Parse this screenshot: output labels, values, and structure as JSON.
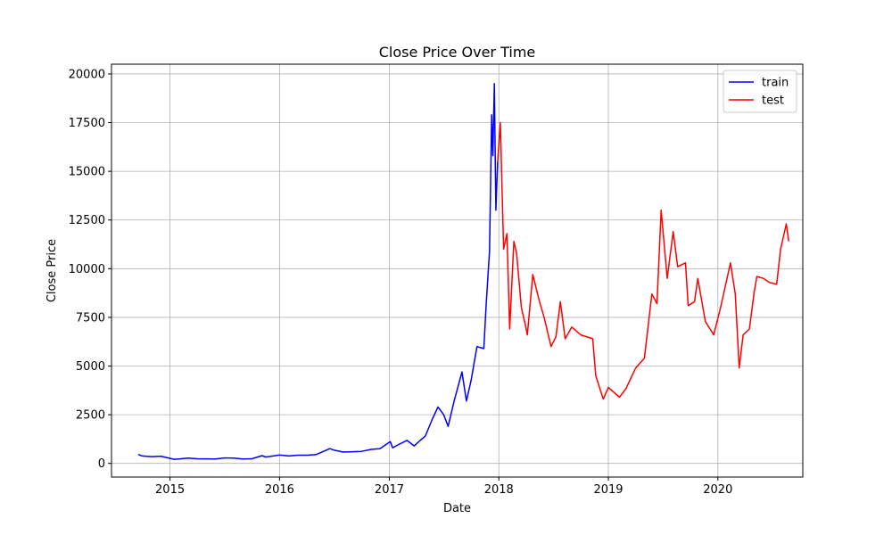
{
  "chart_data": {
    "type": "line",
    "title": "Close Price Over Time",
    "xlabel": "Date",
    "ylabel": "Close Price",
    "xlim": [
      "2014-06-20",
      "2020-10-10"
    ],
    "ylim": [
      -700,
      20500
    ],
    "x_ticks": [
      "2015-01-01",
      "2016-01-01",
      "2017-01-01",
      "2018-01-01",
      "2019-01-01",
      "2020-01-01"
    ],
    "x_tick_labels": [
      "2015",
      "2016",
      "2017",
      "2018",
      "2019",
      "2020"
    ],
    "y_ticks": [
      0,
      2500,
      5000,
      7500,
      10000,
      12500,
      15000,
      17500,
      20000
    ],
    "y_tick_labels": [
      "0",
      "2500",
      "5000",
      "7500",
      "10000",
      "12500",
      "15000",
      "17500",
      "20000"
    ],
    "grid": true,
    "legend_position": "top-right",
    "series": [
      {
        "name": "train",
        "color": "#0000ff",
        "points": [
          [
            "2014-09-17",
            460
          ],
          [
            "2014-10-01",
            380
          ],
          [
            "2014-11-01",
            350
          ],
          [
            "2014-12-01",
            370
          ],
          [
            "2015-01-15",
            210
          ],
          [
            "2015-02-01",
            230
          ],
          [
            "2015-03-01",
            270
          ],
          [
            "2015-04-01",
            240
          ],
          [
            "2015-05-01",
            235
          ],
          [
            "2015-06-01",
            225
          ],
          [
            "2015-07-01",
            280
          ],
          [
            "2015-08-01",
            270
          ],
          [
            "2015-09-01",
            230
          ],
          [
            "2015-10-01",
            240
          ],
          [
            "2015-11-04",
            400
          ],
          [
            "2015-11-15",
            330
          ],
          [
            "2015-12-01",
            360
          ],
          [
            "2016-01-01",
            430
          ],
          [
            "2016-02-01",
            380
          ],
          [
            "2016-03-01",
            420
          ],
          [
            "2016-04-01",
            420
          ],
          [
            "2016-05-01",
            450
          ],
          [
            "2016-06-17",
            760
          ],
          [
            "2016-07-01",
            680
          ],
          [
            "2016-08-01",
            580
          ],
          [
            "2016-09-01",
            600
          ],
          [
            "2016-10-01",
            620
          ],
          [
            "2016-11-01",
            720
          ],
          [
            "2016-12-01",
            760
          ],
          [
            "2017-01-04",
            1120
          ],
          [
            "2017-01-12",
            800
          ],
          [
            "2017-02-01",
            970
          ],
          [
            "2017-03-01",
            1180
          ],
          [
            "2017-03-25",
            900
          ],
          [
            "2017-04-15",
            1200
          ],
          [
            "2017-05-01",
            1400
          ],
          [
            "2017-05-25",
            2300
          ],
          [
            "2017-06-12",
            2900
          ],
          [
            "2017-07-01",
            2500
          ],
          [
            "2017-07-16",
            1900
          ],
          [
            "2017-08-05",
            3200
          ],
          [
            "2017-08-31",
            4700
          ],
          [
            "2017-09-15",
            3200
          ],
          [
            "2017-10-01",
            4300
          ],
          [
            "2017-10-20",
            6000
          ],
          [
            "2017-11-12",
            5900
          ],
          [
            "2017-11-20",
            8200
          ],
          [
            "2017-12-01",
            10900
          ],
          [
            "2017-12-08",
            17900
          ],
          [
            "2017-12-12",
            15800
          ],
          [
            "2017-12-17",
            19500
          ],
          [
            "2017-12-22",
            13000
          ],
          [
            "2017-12-28",
            15500
          ]
        ]
      },
      {
        "name": "test",
        "color": "#ff0000",
        "points": [
          [
            "2017-12-28",
            15500
          ],
          [
            "2018-01-06",
            17500
          ],
          [
            "2018-01-17",
            11000
          ],
          [
            "2018-01-28",
            11800
          ],
          [
            "2018-02-06",
            6900
          ],
          [
            "2018-02-20",
            11400
          ],
          [
            "2018-03-01",
            10800
          ],
          [
            "2018-03-17",
            8000
          ],
          [
            "2018-04-01",
            7000
          ],
          [
            "2018-04-06",
            6600
          ],
          [
            "2018-04-24",
            9700
          ],
          [
            "2018-05-15",
            8400
          ],
          [
            "2018-06-01",
            7500
          ],
          [
            "2018-06-24",
            6000
          ],
          [
            "2018-07-10",
            6500
          ],
          [
            "2018-07-25",
            8300
          ],
          [
            "2018-08-10",
            6400
          ],
          [
            "2018-09-01",
            7000
          ],
          [
            "2018-10-01",
            6600
          ],
          [
            "2018-11-10",
            6400
          ],
          [
            "2018-11-20",
            4500
          ],
          [
            "2018-12-15",
            3300
          ],
          [
            "2019-01-01",
            3900
          ],
          [
            "2019-02-07",
            3400
          ],
          [
            "2019-03-01",
            3850
          ],
          [
            "2019-04-02",
            4900
          ],
          [
            "2019-05-01",
            5400
          ],
          [
            "2019-05-26",
            8700
          ],
          [
            "2019-06-12",
            8200
          ],
          [
            "2019-06-26",
            13000
          ],
          [
            "2019-07-16",
            9500
          ],
          [
            "2019-08-05",
            11900
          ],
          [
            "2019-08-20",
            10100
          ],
          [
            "2019-09-15",
            10300
          ],
          [
            "2019-09-24",
            8100
          ],
          [
            "2019-10-15",
            8300
          ],
          [
            "2019-10-26",
            9500
          ],
          [
            "2019-11-20",
            7300
          ],
          [
            "2019-12-18",
            6600
          ],
          [
            "2020-01-10",
            8000
          ],
          [
            "2020-02-12",
            10300
          ],
          [
            "2020-02-28",
            8700
          ],
          [
            "2020-03-12",
            4900
          ],
          [
            "2020-03-25",
            6600
          ],
          [
            "2020-04-15",
            6900
          ],
          [
            "2020-05-01",
            8800
          ],
          [
            "2020-05-10",
            9600
          ],
          [
            "2020-06-01",
            9500
          ],
          [
            "2020-06-20",
            9300
          ],
          [
            "2020-07-15",
            9200
          ],
          [
            "2020-07-28",
            11000
          ],
          [
            "2020-08-16",
            12300
          ],
          [
            "2020-08-24",
            11400
          ]
        ]
      }
    ]
  }
}
